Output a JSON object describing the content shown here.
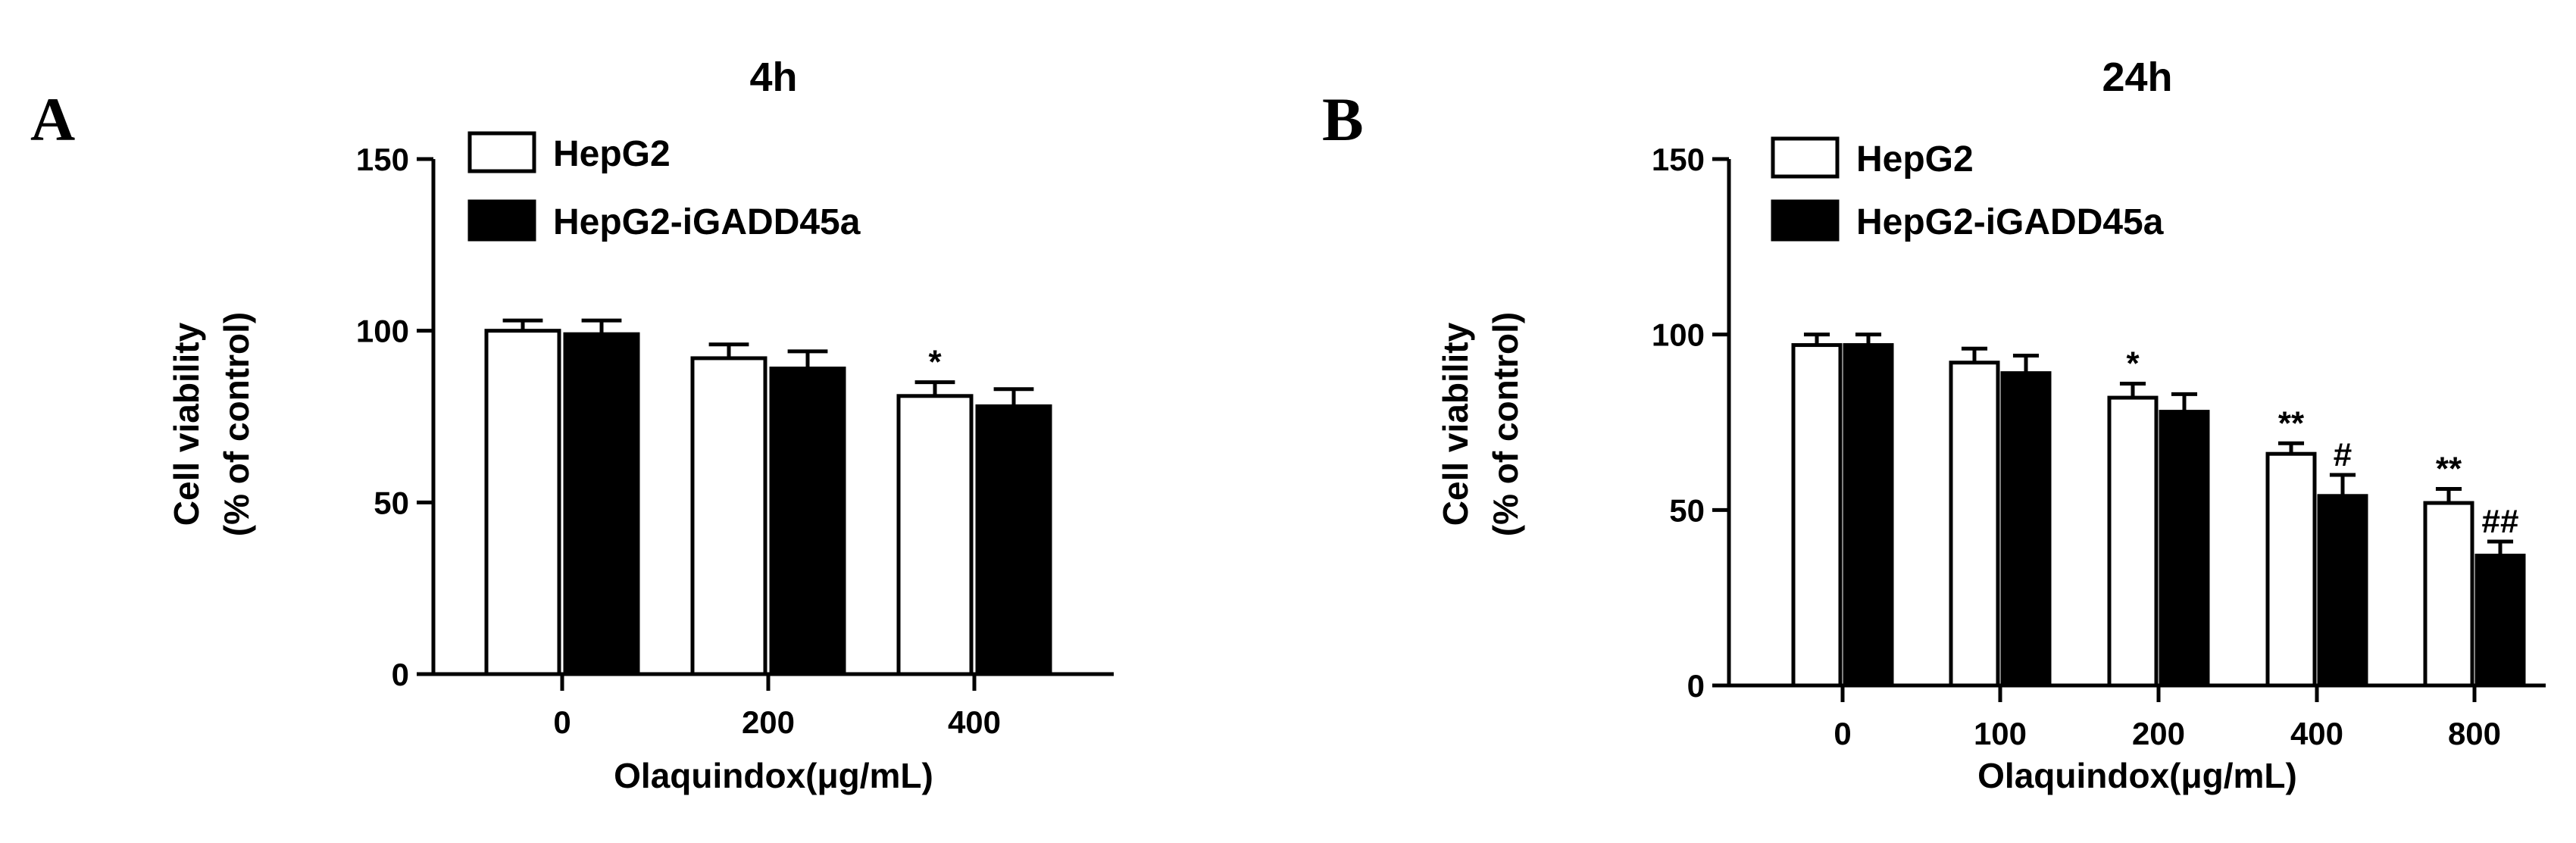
{
  "chart_data": [
    {
      "type": "bar",
      "panel": "A",
      "title": "4h",
      "xlabel": "Olaquindox(μg/mL)",
      "ylabel": [
        "Cell viability",
        "(% of control)"
      ],
      "ylim": [
        0,
        150
      ],
      "yticks": [
        0,
        50,
        100,
        150
      ],
      "categories": [
        "0",
        "200",
        "400"
      ],
      "legend_position": "top-left",
      "series": [
        {
          "name": "HepG2",
          "fill": "#ffffff",
          "values": [
            100,
            92,
            81
          ],
          "errors": [
            3,
            4,
            4
          ],
          "annotations": [
            "",
            "",
            "*"
          ]
        },
        {
          "name": "HepG2-iGADD45a",
          "fill": "#000000",
          "values": [
            99,
            89,
            78
          ],
          "errors": [
            4,
            5,
            5
          ],
          "annotations": [
            "",
            "",
            ""
          ]
        }
      ]
    },
    {
      "type": "bar",
      "panel": "B",
      "title": "24h",
      "xlabel": "Olaquindox(μg/mL)",
      "ylabel": [
        "Cell viability",
        "(% of control)"
      ],
      "ylim": [
        0,
        150
      ],
      "yticks": [
        0,
        50,
        100,
        150
      ],
      "categories": [
        "0",
        "100",
        "200",
        "400",
        "800"
      ],
      "legend_position": "top-left",
      "series": [
        {
          "name": "HepG2",
          "fill": "#ffffff",
          "values": [
            97,
            92,
            82,
            66,
            52
          ],
          "errors": [
            3,
            4,
            4,
            3,
            4
          ],
          "annotations": [
            "",
            "",
            "*",
            "**",
            "**"
          ]
        },
        {
          "name": "HepG2-iGADD45a",
          "fill": "#000000",
          "values": [
            97,
            89,
            78,
            54,
            37
          ],
          "errors": [
            3,
            5,
            5,
            6,
            4
          ],
          "annotations": [
            "",
            "",
            "",
            "#",
            "##"
          ]
        }
      ]
    }
  ]
}
